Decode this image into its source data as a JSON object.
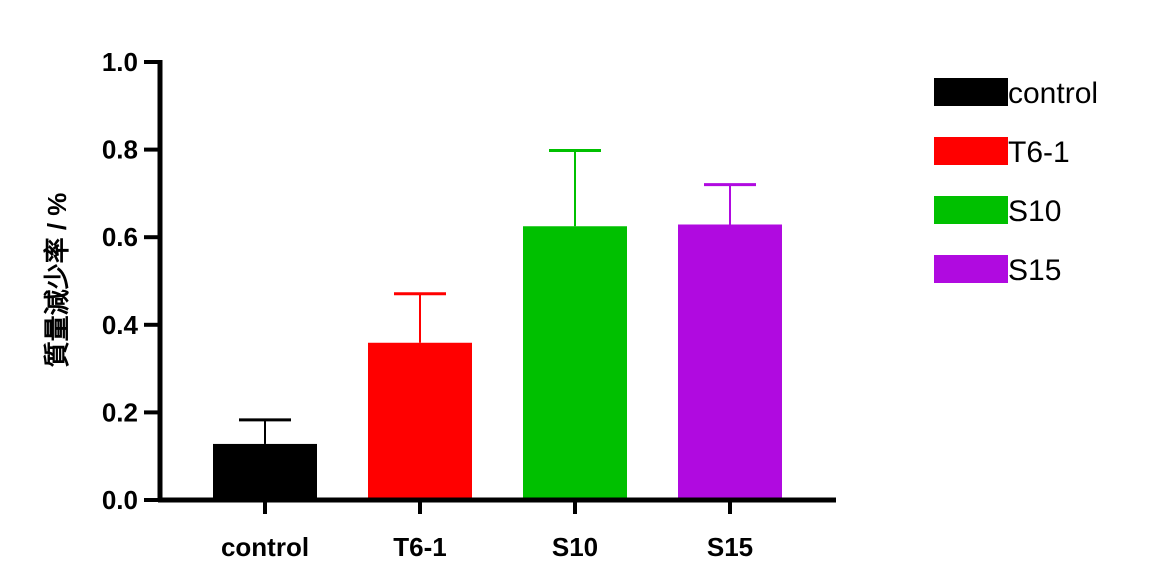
{
  "chart_data": {
    "type": "bar",
    "title": "",
    "xlabel": "",
    "ylabel": "質量減少率 / %",
    "ylim": [
      0,
      1.0
    ],
    "yticks": [
      "0.0",
      "0.2",
      "0.4",
      "0.6",
      "0.8",
      "1.0"
    ],
    "categories": [
      "control",
      "T6-1",
      "S10",
      "S15"
    ],
    "values": [
      0.128,
      0.359,
      0.625,
      0.629
    ],
    "error_upper": [
      0.183,
      0.471,
      0.798,
      0.72
    ],
    "colors": [
      "#000000",
      "#ff0000",
      "#00c000",
      "#b00ae0"
    ],
    "legend": {
      "position": "right",
      "entries": [
        "control",
        "T6-1",
        "S10",
        "S15"
      ]
    },
    "grid": false
  }
}
